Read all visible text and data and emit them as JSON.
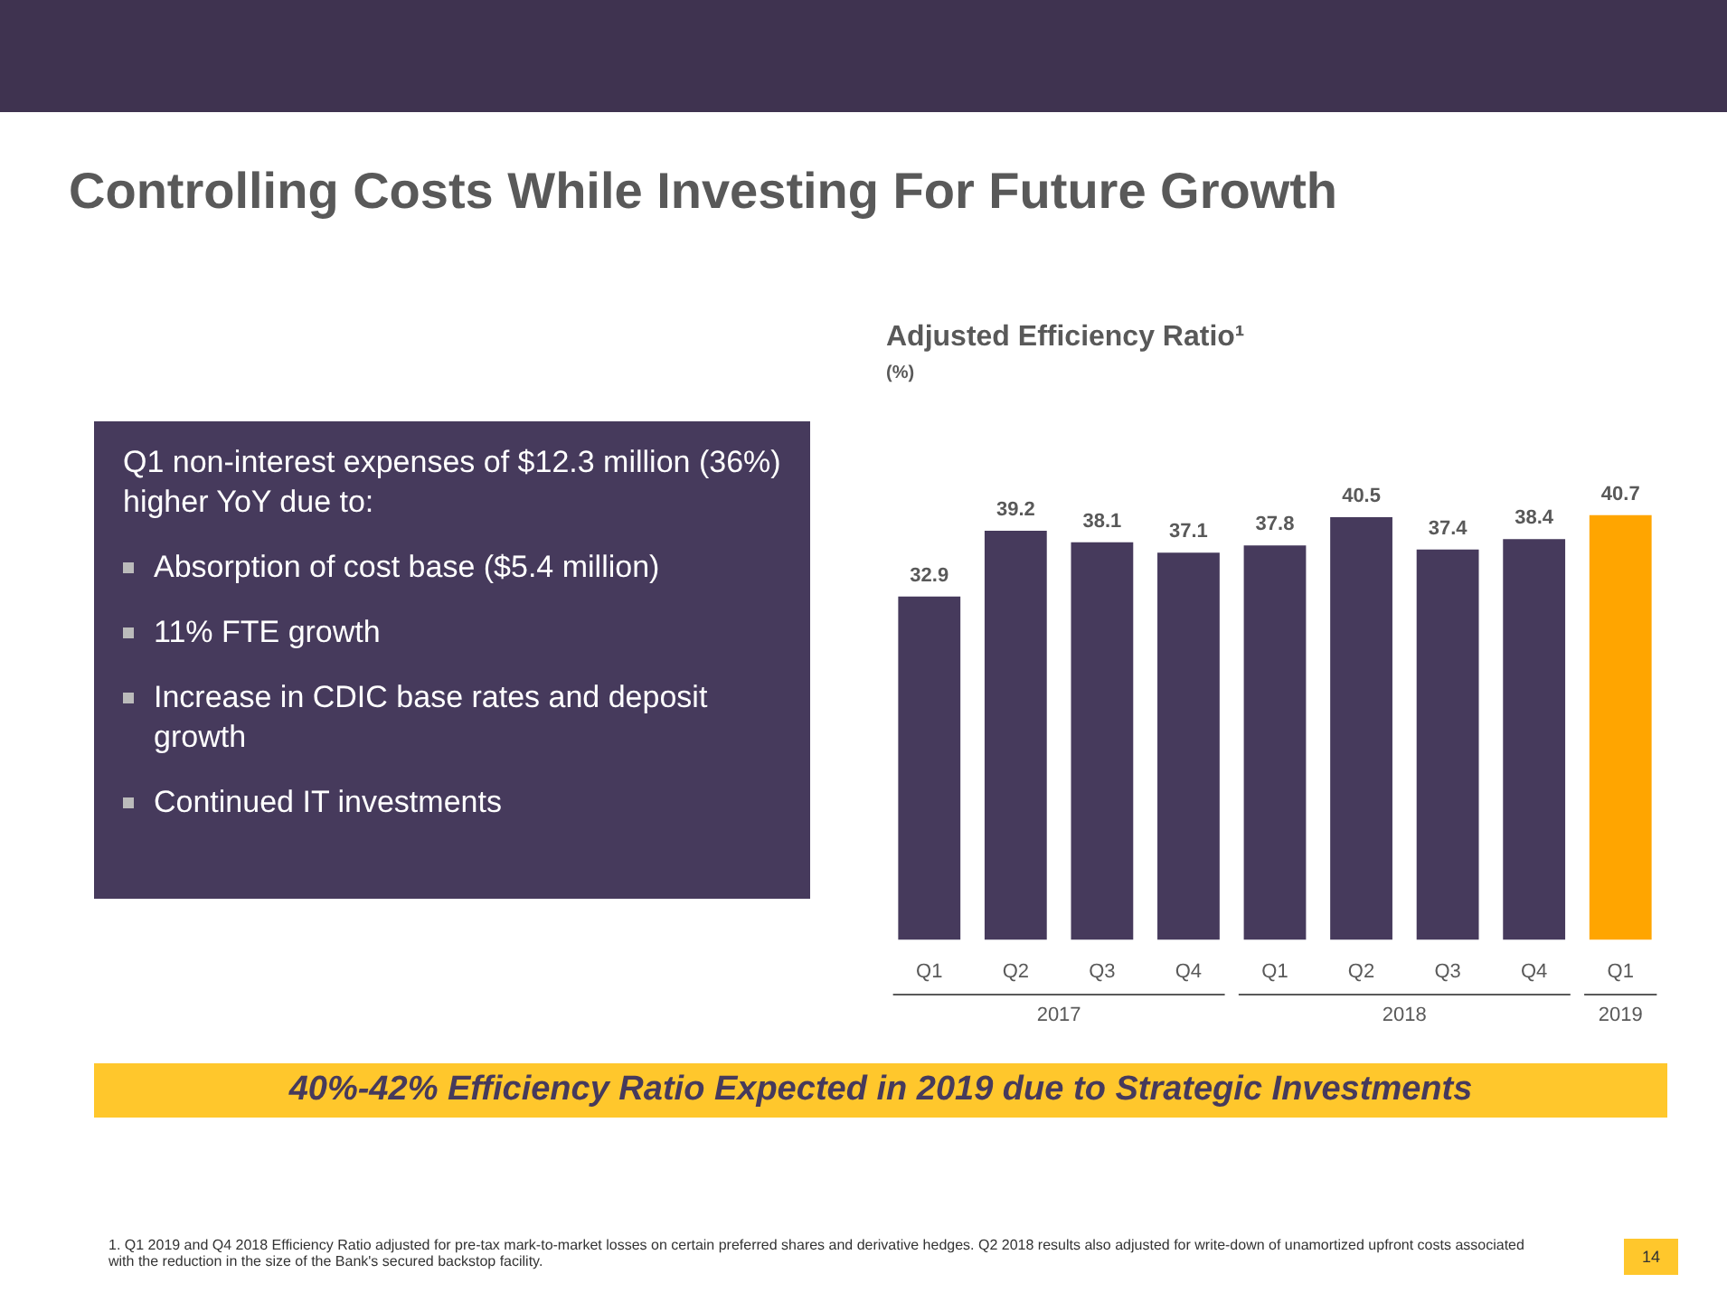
{
  "chart_data": {
    "type": "bar",
    "title": "Adjusted Efficiency Ratio¹",
    "subtitle": "(%)",
    "categories": [
      "Q1",
      "Q2",
      "Q3",
      "Q4",
      "Q1",
      "Q2",
      "Q3",
      "Q4",
      "Q1"
    ],
    "values": [
      32.9,
      39.2,
      38.1,
      37.1,
      37.8,
      40.5,
      37.4,
      38.4,
      40.7
    ],
    "colors": [
      "#463a5c",
      "#463a5c",
      "#463a5c",
      "#463a5c",
      "#463a5c",
      "#463a5c",
      "#463a5c",
      "#463a5c",
      "#ffa500"
    ],
    "data_labels": true,
    "grid": false,
    "legend": false,
    "tick_labels": "x",
    "annotations": [
      "2017",
      "2018",
      "2019",
      "Controlling Costs While Investing For Future Growth",
      "Q1 non-interest expenses of $12.3 million (36%) higher YoY due to:",
      "Absorption of cost base ($5.4 million)",
      "11% FTE growth",
      "Increase in CDIC base rates and deposit growth",
      "Continued IT investments",
      "40%-42% Efficiency Ratio Expected in 2019 due to Strategic Investments",
      "1. Q1 2019 and Q4 2018 Efficiency Ratio adjusted for pre-tax mark-to-market losses on certain preferred shares and derivative hedges. Q2 2018 results also adjusted for write-down of unamortized upfront costs associated with the reduction in the size of the Bank's secured backstop facility.",
      "14"
    ]
  }
}
